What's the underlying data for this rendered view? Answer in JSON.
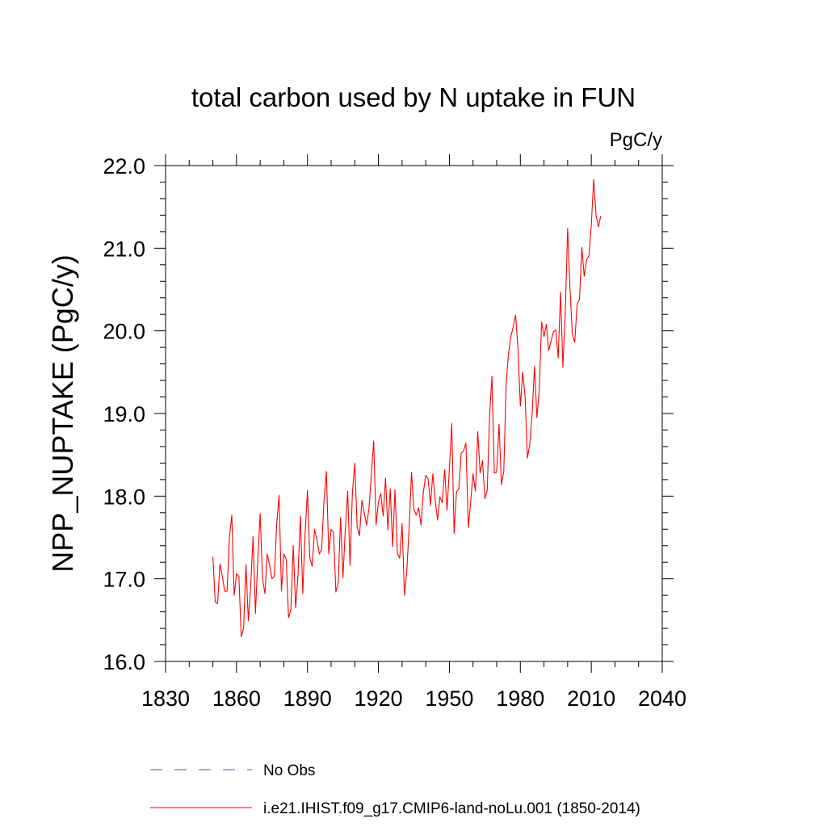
{
  "chart_data": {
    "type": "line",
    "title": "total carbon used by N uptake in FUN",
    "units_label": "PgC/y",
    "ylabel": "NPP_NUPTAKE  (PgC/y)",
    "xlabel": "",
    "xlim": [
      1830,
      2040
    ],
    "ylim": [
      16.0,
      22.0
    ],
    "x_ticks": [
      1830,
      1860,
      1890,
      1920,
      1950,
      1980,
      2010,
      2040
    ],
    "x_tick_labels": [
      "1830",
      "1860",
      "1890",
      "1920",
      "1950",
      "1980",
      "2010",
      "2040"
    ],
    "y_ticks": [
      16.0,
      17.0,
      18.0,
      19.0,
      20.0,
      21.0,
      22.0
    ],
    "y_tick_labels": [
      "16.0",
      "17.0",
      "18.0",
      "19.0",
      "20.0",
      "21.0",
      "22.0"
    ],
    "grid": false,
    "legend_placement": "bottom",
    "x": [
      1850,
      1851,
      1852,
      1853,
      1854,
      1855,
      1856,
      1857,
      1858,
      1859,
      1860,
      1861,
      1862,
      1863,
      1864,
      1865,
      1866,
      1867,
      1868,
      1869,
      1870,
      1871,
      1872,
      1873,
      1874,
      1875,
      1876,
      1877,
      1878,
      1879,
      1880,
      1881,
      1882,
      1883,
      1884,
      1885,
      1886,
      1887,
      1888,
      1889,
      1890,
      1891,
      1892,
      1893,
      1894,
      1895,
      1896,
      1897,
      1898,
      1899,
      1900,
      1901,
      1902,
      1903,
      1904,
      1905,
      1906,
      1907,
      1908,
      1909,
      1910,
      1911,
      1912,
      1913,
      1914,
      1915,
      1916,
      1917,
      1918,
      1919,
      1920,
      1921,
      1922,
      1923,
      1924,
      1925,
      1926,
      1927,
      1928,
      1929,
      1930,
      1931,
      1932,
      1933,
      1934,
      1935,
      1936,
      1937,
      1938,
      1939,
      1940,
      1941,
      1942,
      1943,
      1944,
      1945,
      1946,
      1947,
      1948,
      1949,
      1950,
      1951,
      1952,
      1953,
      1954,
      1955,
      1956,
      1957,
      1958,
      1959,
      1960,
      1961,
      1962,
      1963,
      1964,
      1965,
      1966,
      1967,
      1968,
      1969,
      1970,
      1971,
      1972,
      1973,
      1974,
      1975,
      1976,
      1977,
      1978,
      1979,
      1980,
      1981,
      1982,
      1983,
      1984,
      1985,
      1986,
      1987,
      1988,
      1989,
      1990,
      1991,
      1992,
      1993,
      1994,
      1995,
      1996,
      1997,
      1998,
      1999,
      2000,
      2001,
      2002,
      2003,
      2004,
      2005,
      2006,
      2007,
      2008,
      2009,
      2010,
      2011,
      2012,
      2013,
      2014
    ],
    "series": [
      {
        "name": "i.e21.IHIST.f09_g17.CMIP6-land-noLu.001 (1850-2014)",
        "color": "#ff0000",
        "style": "solid",
        "values": [
          17.27,
          16.72,
          16.7,
          17.18,
          17.03,
          16.85,
          16.85,
          17.5,
          17.77,
          16.8,
          17.06,
          17.03,
          16.3,
          16.4,
          17.17,
          16.49,
          16.92,
          17.51,
          16.58,
          17.23,
          17.79,
          17.0,
          16.82,
          17.3,
          17.16,
          17.0,
          17.03,
          17.67,
          18.01,
          16.85,
          17.3,
          17.24,
          16.53,
          16.63,
          17.4,
          16.65,
          17.05,
          17.76,
          16.82,
          17.55,
          18.07,
          17.25,
          17.15,
          17.6,
          17.47,
          17.3,
          17.36,
          17.95,
          18.3,
          17.3,
          17.6,
          17.56,
          16.84,
          16.95,
          17.74,
          17.01,
          17.6,
          18.06,
          17.16,
          18.04,
          18.4,
          17.63,
          17.52,
          17.95,
          17.8,
          17.65,
          17.85,
          18.26,
          18.67,
          17.65,
          17.93,
          18.03,
          17.76,
          18.22,
          17.59,
          18.09,
          17.39,
          18.08,
          17.31,
          17.25,
          17.67,
          16.8,
          17.1,
          17.63,
          18.29,
          17.84,
          17.77,
          17.86,
          17.65,
          18.05,
          18.25,
          18.21,
          17.89,
          18.27,
          17.95,
          17.71,
          17.99,
          17.92,
          18.32,
          17.83,
          18.33,
          18.88,
          17.55,
          18.05,
          18.09,
          18.52,
          18.55,
          18.64,
          17.62,
          17.93,
          18.27,
          18.06,
          18.78,
          18.28,
          18.43,
          17.97,
          18.07,
          18.97,
          19.45,
          18.28,
          18.29,
          18.87,
          18.14,
          18.3,
          19.36,
          19.73,
          19.93,
          20.05,
          20.19,
          19.78,
          19.09,
          19.5,
          19.21,
          18.46,
          18.63,
          19.0,
          19.57,
          18.95,
          19.28,
          20.11,
          19.93,
          20.08,
          19.76,
          19.88,
          19.99,
          20.01,
          19.67,
          20.47,
          19.56,
          20.23,
          21.24,
          20.51,
          19.96,
          19.86,
          20.32,
          20.38,
          21.01,
          20.66,
          20.86,
          20.91,
          21.28,
          21.83,
          21.4,
          21.26,
          21.39
        ]
      }
    ],
    "legend": [
      {
        "label": "No Obs",
        "color": "#5a5aaa",
        "style": "dashed"
      },
      {
        "label": "i.e21.IHIST.f09_g17.CMIP6-land-noLu.001 (1850-2014)",
        "color": "#ff0000",
        "style": "solid"
      }
    ]
  }
}
